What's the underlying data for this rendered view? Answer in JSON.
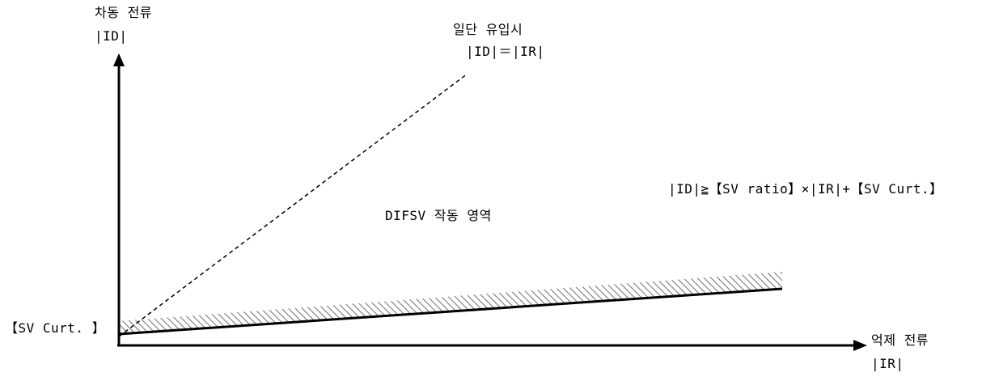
{
  "y_axis": {
    "title": "차동 전류",
    "symbol": "|ID|"
  },
  "x_axis": {
    "title": "억제 전류",
    "symbol": "|IR|"
  },
  "inrush_line": {
    "title": "일단 유입시",
    "equation": "|ID|＝|IR|"
  },
  "operating_region": {
    "label": "DIFSV 작동 영역"
  },
  "characteristic": {
    "formula": "|ID|≧【SV ratio】×|IR|+【SV Curt.】",
    "intercept_label": "【SV Curt. 】"
  },
  "colors": {
    "line": "#000000",
    "hatch": "#7a7a7a",
    "background": "#ffffff"
  }
}
